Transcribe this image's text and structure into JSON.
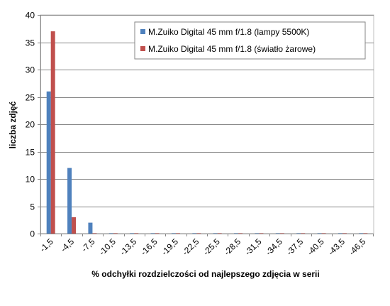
{
  "chart_data": {
    "type": "bar",
    "title": "",
    "xlabel": "% odchyłki  rozdzielczości  od najlepszego  zdjęcia  w serii",
    "ylabel": "liczba zdjęć",
    "categories": [
      "-1,5",
      "-4,5",
      "-7,5",
      "-10,5",
      "-13,5",
      "-16,5",
      "-19,5",
      "-22,5",
      "-25,5",
      "-28,5",
      "-31,5",
      "-34,5",
      "-37,5",
      "-40,5",
      "-43,5",
      "-46,5"
    ],
    "yticks": [
      "0",
      "5",
      "10",
      "15",
      "20",
      "25",
      "30",
      "35",
      "40"
    ],
    "ylim": [
      0,
      40
    ],
    "grid": true,
    "legend_position": "top-right",
    "series": [
      {
        "name": "M.Zuiko Digital  45 mm  f/1.8  (lampy 5500K)",
        "color": "#4F81BD",
        "values": [
          26,
          12,
          2,
          0,
          0,
          0,
          0,
          0,
          0,
          0,
          0,
          0,
          0,
          0,
          0,
          0
        ]
      },
      {
        "name": "M.Zuiko Digital  45 mm  f/1.8  (światło  żarowe)",
        "color": "#C0504D",
        "values": [
          37,
          3,
          0,
          0,
          0,
          0,
          0,
          0,
          0,
          0,
          0,
          0,
          0,
          0,
          0,
          0
        ]
      }
    ]
  }
}
